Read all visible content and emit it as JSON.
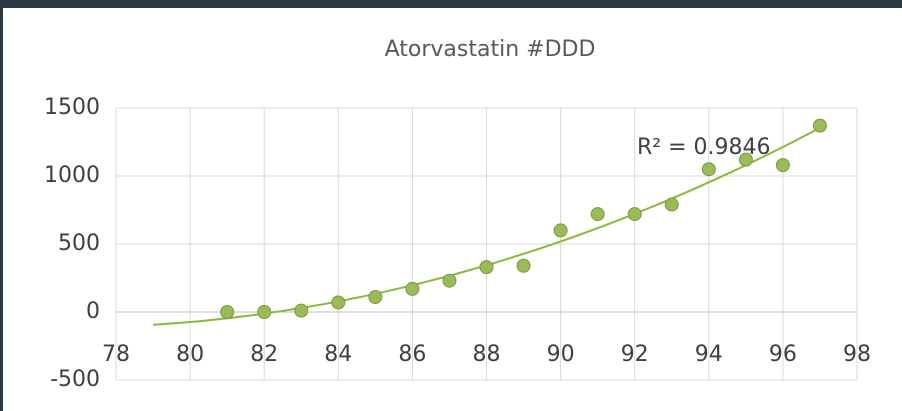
{
  "chart_data": {
    "type": "scatter",
    "title": "Atorvastatin #DDD",
    "series": [
      {
        "name": "#DDD",
        "color": "#9bbb59",
        "x": [
          81,
          82,
          83,
          84,
          85,
          86,
          87,
          88,
          89,
          90,
          91,
          92,
          93,
          94,
          95,
          96,
          97
        ],
        "values": [
          0,
          0,
          10,
          70,
          110,
          170,
          230,
          330,
          340,
          600,
          720,
          720,
          790,
          1050,
          1120,
          1080,
          1370
        ]
      }
    ],
    "trendline": {
      "order": 2,
      "from": 79,
      "color": "#8cb83b",
      "label": "R² = 0.9846"
    },
    "xlim": [
      78,
      98
    ],
    "xticks": [
      78,
      80,
      82,
      84,
      86,
      88,
      90,
      92,
      94,
      96,
      98
    ],
    "ylim": [
      -500,
      1500
    ],
    "yticks": [
      -500,
      0,
      500,
      1000,
      1500
    ],
    "grid": true
  }
}
